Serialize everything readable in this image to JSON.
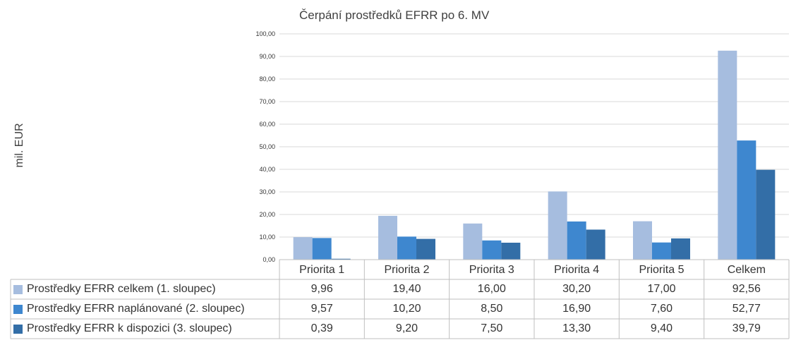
{
  "chart_data": {
    "type": "bar",
    "title": "Čerpání prostředků EFRR po 6. MV",
    "ylabel": "mil. EUR",
    "xlabel": "",
    "ylim": [
      0,
      100
    ],
    "yticks": [
      "0,00",
      "10,00",
      "20,00",
      "30,00",
      "40,00",
      "50,00",
      "60,00",
      "70,00",
      "80,00",
      "90,00",
      "100,00"
    ],
    "grid": true,
    "legend": "data-table",
    "categories": [
      "Priorita 1",
      "Priorita 2",
      "Priorita 3",
      "Priorita 4",
      "Priorita 5",
      "Celkem"
    ],
    "series": [
      {
        "name": "Prostředky EFRR celkem (1. sloupec)",
        "color": "#a6bddf",
        "values": [
          9.96,
          19.4,
          16.0,
          30.2,
          17.0,
          92.56
        ],
        "labels": [
          "9,96",
          "19,40",
          "16,00",
          "30,20",
          "17,00",
          "92,56"
        ]
      },
      {
        "name": "Prostředky EFRR naplánované (2. sloupec)",
        "color": "#3e87cf",
        "values": [
          9.57,
          10.2,
          8.5,
          16.9,
          7.6,
          52.77
        ],
        "labels": [
          "9,57",
          "10,20",
          "8,50",
          "16,90",
          "7,60",
          "52,77"
        ]
      },
      {
        "name": "Prostředky EFRR k dispozici (3. sloupec)",
        "color": "#336ea7",
        "values": [
          0.39,
          9.2,
          7.5,
          13.3,
          9.4,
          39.79
        ],
        "labels": [
          "0,39",
          "9,20",
          "7,50",
          "13,30",
          "9,40",
          "39,79"
        ]
      }
    ]
  }
}
